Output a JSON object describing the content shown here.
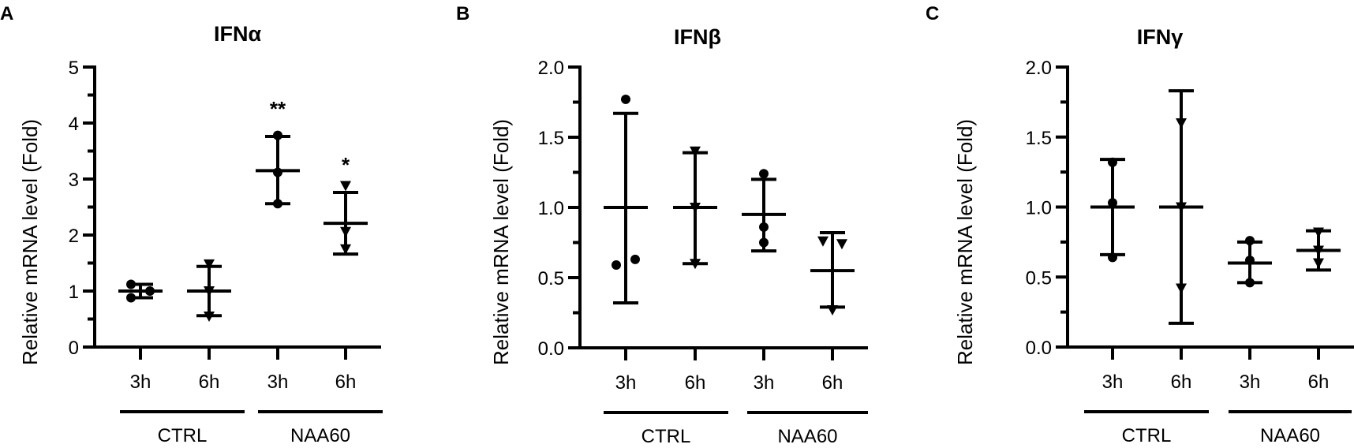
{
  "figure": {
    "panels": [
      {
        "letter": "A",
        "title": "IFNα"
      },
      {
        "letter": "B",
        "title": "IFNβ"
      },
      {
        "letter": "C",
        "title": "IFNγ"
      }
    ],
    "ylabel": "Relative mRNA level (Fold)",
    "time_labels": [
      "3h",
      "6h",
      "3h",
      "6h"
    ],
    "group_labels": [
      "CTRL",
      "NAA60"
    ]
  },
  "chart_data": [
    {
      "type": "scatter",
      "title": "IFNα",
      "panel": "A",
      "xlabel": "",
      "ylabel": "Relative mRNA level (Fold)",
      "ylim": [
        0,
        5
      ],
      "yticks": [
        0,
        1,
        2,
        3,
        4,
        5
      ],
      "ytick_labels": [
        "0",
        "1",
        "2",
        "3",
        "4",
        "5"
      ],
      "categories": [
        "CTRL 3h",
        "CTRL 6h",
        "NAA60 3h",
        "NAA60 6h"
      ],
      "groups": [
        {
          "name": "CTRL",
          "members": [
            "3h",
            "6h"
          ]
        },
        {
          "name": "NAA60",
          "members": [
            "3h",
            "6h"
          ]
        }
      ],
      "series": [
        {
          "name": "CTRL 3h",
          "marker": "circle",
          "mean": 1.0,
          "sd_high": 1.12,
          "sd_low": 0.88,
          "points": [
            1.12,
            1.0,
            0.88
          ],
          "annotation": ""
        },
        {
          "name": "CTRL 6h",
          "marker": "triangle-down",
          "mean": 1.0,
          "sd_high": 1.44,
          "sd_low": 0.56,
          "points": [
            1.48,
            1.0,
            0.55
          ],
          "annotation": ""
        },
        {
          "name": "NAA60 3h",
          "marker": "circle",
          "mean": 3.15,
          "sd_high": 3.76,
          "sd_low": 2.56,
          "points": [
            3.78,
            3.12,
            2.56
          ],
          "annotation": "**"
        },
        {
          "name": "NAA60 6h",
          "marker": "triangle-down",
          "mean": 2.21,
          "sd_high": 2.76,
          "sd_low": 1.66,
          "points": [
            2.88,
            2.06,
            1.75
          ],
          "annotation": "*"
        }
      ]
    },
    {
      "type": "scatter",
      "title": "IFNβ",
      "panel": "B",
      "xlabel": "",
      "ylabel": "Relative mRNA level (Fold)",
      "ylim": [
        0,
        2
      ],
      "yticks": [
        0,
        0.5,
        1.0,
        1.5,
        2.0
      ],
      "ytick_labels": [
        "0.0",
        "0.5",
        "1.0",
        "1.5",
        "2.0"
      ],
      "categories": [
        "CTRL 3h",
        "CTRL 6h",
        "NAA60 3h",
        "NAA60 6h"
      ],
      "groups": [
        {
          "name": "CTRL",
          "members": [
            "3h",
            "6h"
          ]
        },
        {
          "name": "NAA60",
          "members": [
            "3h",
            "6h"
          ]
        }
      ],
      "series": [
        {
          "name": "CTRL 3h",
          "marker": "circle",
          "mean": 1.0,
          "sd_high": 1.67,
          "sd_low": 0.32,
          "points": [
            1.77,
            0.59,
            0.63
          ],
          "annotation": ""
        },
        {
          "name": "CTRL 6h",
          "marker": "triangle-down",
          "mean": 1.0,
          "sd_high": 1.39,
          "sd_low": 0.6,
          "points": [
            1.4,
            1.0,
            0.6
          ],
          "annotation": ""
        },
        {
          "name": "NAA60 3h",
          "marker": "circle",
          "mean": 0.95,
          "sd_high": 1.2,
          "sd_low": 0.69,
          "points": [
            1.24,
            0.86,
            0.75
          ],
          "annotation": ""
        },
        {
          "name": "NAA60 6h",
          "marker": "triangle-down",
          "mean": 0.55,
          "sd_high": 0.82,
          "sd_low": 0.29,
          "points": [
            0.76,
            0.74,
            0.27
          ],
          "annotation": ""
        }
      ]
    },
    {
      "type": "scatter",
      "title": "IFNγ",
      "panel": "C",
      "xlabel": "",
      "ylabel": "Relative mRNA level (Fold)",
      "ylim": [
        0,
        2
      ],
      "yticks": [
        0,
        0.5,
        1.0,
        1.5,
        2.0
      ],
      "ytick_labels": [
        "0.0",
        "0.5",
        "1.0",
        "1.5",
        "2.0"
      ],
      "categories": [
        "CTRL 3h",
        "CTRL 6h",
        "NAA60 3h",
        "NAA60 6h"
      ],
      "groups": [
        {
          "name": "CTRL",
          "members": [
            "3h",
            "6h"
          ]
        },
        {
          "name": "NAA60",
          "members": [
            "3h",
            "6h"
          ]
        }
      ],
      "series": [
        {
          "name": "CTRL 3h",
          "marker": "circle",
          "mean": 1.0,
          "sd_high": 1.34,
          "sd_low": 0.66,
          "points": [
            1.32,
            1.03,
            0.64
          ],
          "annotation": ""
        },
        {
          "name": "CTRL 6h",
          "marker": "triangle-down",
          "mean": 1.0,
          "sd_high": 1.83,
          "sd_low": 0.17,
          "points": [
            1.6,
            1.0,
            0.42
          ],
          "annotation": ""
        },
        {
          "name": "NAA60 3h",
          "marker": "circle",
          "mean": 0.6,
          "sd_high": 0.75,
          "sd_low": 0.46,
          "points": [
            0.76,
            0.62,
            0.46
          ],
          "annotation": ""
        },
        {
          "name": "NAA60 6h",
          "marker": "triangle-down",
          "mean": 0.69,
          "sd_high": 0.83,
          "sd_low": 0.55,
          "points": [
            0.82,
            0.69,
            0.6
          ],
          "annotation": ""
        }
      ]
    }
  ]
}
